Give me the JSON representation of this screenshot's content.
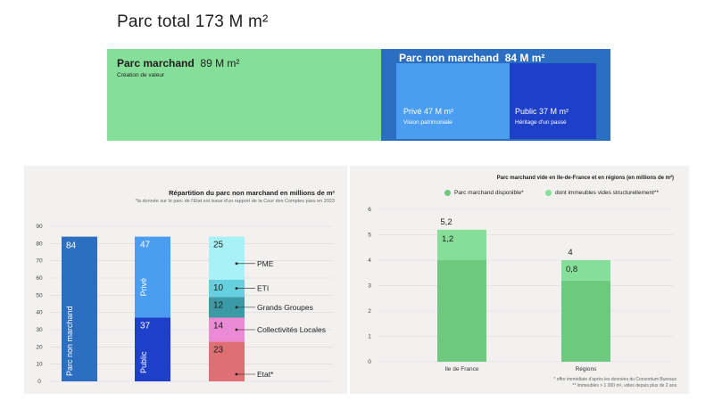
{
  "header": {
    "title": "Parc total 173 M m²"
  },
  "treemap": {
    "marchand": {
      "label": "Parc marchand",
      "value": "89 M m²",
      "sublabel": "Création de valeur",
      "color": "#86df98"
    },
    "non_marchand": {
      "label": "Parc non marchand",
      "value": "84 M m²",
      "color": "#2b6fc3"
    },
    "prive": {
      "label": "Privé 47 M m²",
      "sublabel": "Vision patrimoniale",
      "color": "#4a9df0"
    },
    "public": {
      "label": "Public 37 M m²",
      "sublabel": "Héritage d'un passé",
      "color": "#1e3fc8"
    }
  },
  "chart_data": [
    {
      "type": "bar",
      "title": "Répartition du parc non marchand en millions de m²",
      "subtitle": "*la donnée sur le parc de l'Etat est issue d'un rapport de la Cour des Comptes paru en 2023",
      "ylim": [
        0,
        90
      ],
      "yticks": [
        "0",
        "10",
        "20",
        "30",
        "40",
        "50",
        "60",
        "70",
        "80",
        "90"
      ],
      "grid": true,
      "bars": [
        {
          "segments": [
            {
              "name": "Parc non marchand",
              "value": 84,
              "value_label": "84",
              "color": "#2c6ec0"
            }
          ]
        },
        {
          "segments": [
            {
              "name": "Public",
              "value": 37,
              "value_label": "37",
              "color": "#1e3fc8"
            },
            {
              "name": "Privé",
              "value": 47,
              "value_label": "47",
              "color": "#4a9df0"
            }
          ]
        },
        {
          "segments": [
            {
              "name": "Etat*",
              "value": 23,
              "value_label": "23",
              "color": "#e06f74"
            },
            {
              "name": "Collectivités Locales",
              "value": 14,
              "value_label": "14",
              "color": "#ec8ad6"
            },
            {
              "name": "Grands Groupes",
              "value": 12,
              "value_label": "12",
              "color": "#3a9aa6"
            },
            {
              "name": "ETI",
              "value": 10,
              "value_label": "10",
              "color": "#66d0de"
            },
            {
              "name": "PME",
              "value": 25,
              "value_label": "25",
              "color": "#a6f2f6"
            }
          ]
        }
      ]
    },
    {
      "type": "bar",
      "title": "Parc marchand vide en Ile-de-France et en régions (en millions de m²)",
      "categories": [
        "Ile de France",
        "Régions"
      ],
      "series": [
        {
          "name": "Parc marchand disponible*",
          "values": [
            4.0,
            3.2
          ],
          "color": "#6dc97e"
        },
        {
          "name": "dont immeubles vides structurellement**",
          "values": [
            1.2,
            0.8
          ],
          "color": "#86df98"
        }
      ],
      "totals": [
        "5,2",
        "4"
      ],
      "segment_labels": [
        "1,2",
        "0,8"
      ],
      "ylim": [
        0,
        6
      ],
      "yticks": [
        "0",
        "1",
        "2",
        "3",
        "4",
        "5",
        "6"
      ],
      "legend": "top",
      "grid": true,
      "footnotes": [
        "* offre immédiate d'après les données du Consortium Bureaux",
        "** immeubles > 1 000 m², vides depuis plus de 2 ans"
      ]
    }
  ]
}
